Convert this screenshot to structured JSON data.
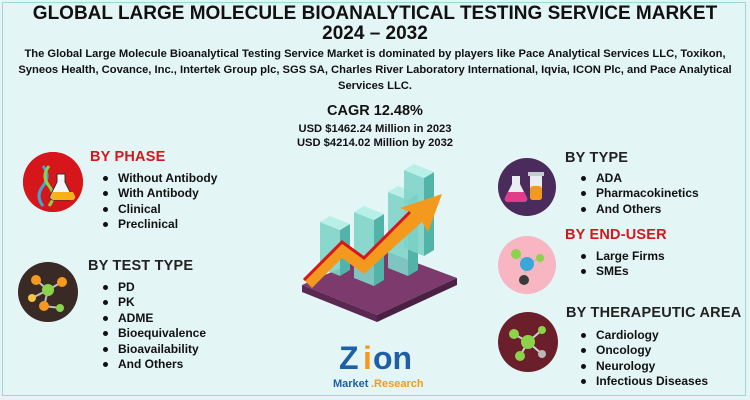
{
  "header": {
    "title_line1": "GLOBAL LARGE MOLECULE BIOANALYTICAL TESTING SERVICE MARKET",
    "title_line2": "2024 – 2032",
    "description": "The Global Large Molecule Bioanalytical Testing Service Market is dominated by players like Pace Analytical Services LLC, Toxikon, Syneos Health, Covance, Inc., Intertek Group plc, SGS SA, Charles River Laboratory International, Iqvia, ICON Plc, and Pace Analytical Services LLC."
  },
  "stats": {
    "cagr": "CAGR 12.48%",
    "value_2023": "USD $1462.24 Million in 2023",
    "value_2032": "USD $4214.02 Million  by 2032"
  },
  "phase": {
    "heading": "BY PHASE",
    "items": [
      "Without Antibody",
      "With Antibody",
      "Clinical",
      "Preclinical"
    ]
  },
  "test_type": {
    "heading": "BY TEST TYPE",
    "items": [
      "PD",
      "PK",
      "ADME",
      "Bioequivalence",
      "Bioavailability",
      "And Others"
    ]
  },
  "type": {
    "heading": "BY TYPE",
    "items": [
      "ADA",
      "Pharmacokinetics",
      "And Others"
    ]
  },
  "end_user": {
    "heading": "BY END-USER",
    "items": [
      "Large Firms",
      "SMEs"
    ]
  },
  "therapeutic": {
    "heading": "BY THERAPEUTIC AREA",
    "items": [
      "Cardiology",
      "Oncology",
      "Neurology",
      "Infectious Diseases"
    ]
  },
  "logo": {
    "name": "Zion",
    "sub": "Market.Research"
  },
  "colors": {
    "background": "#e4f5f6",
    "accent_red": "#d7161b",
    "logo_blue": "#1f5fa8",
    "logo_orange": "#f39a1e"
  }
}
